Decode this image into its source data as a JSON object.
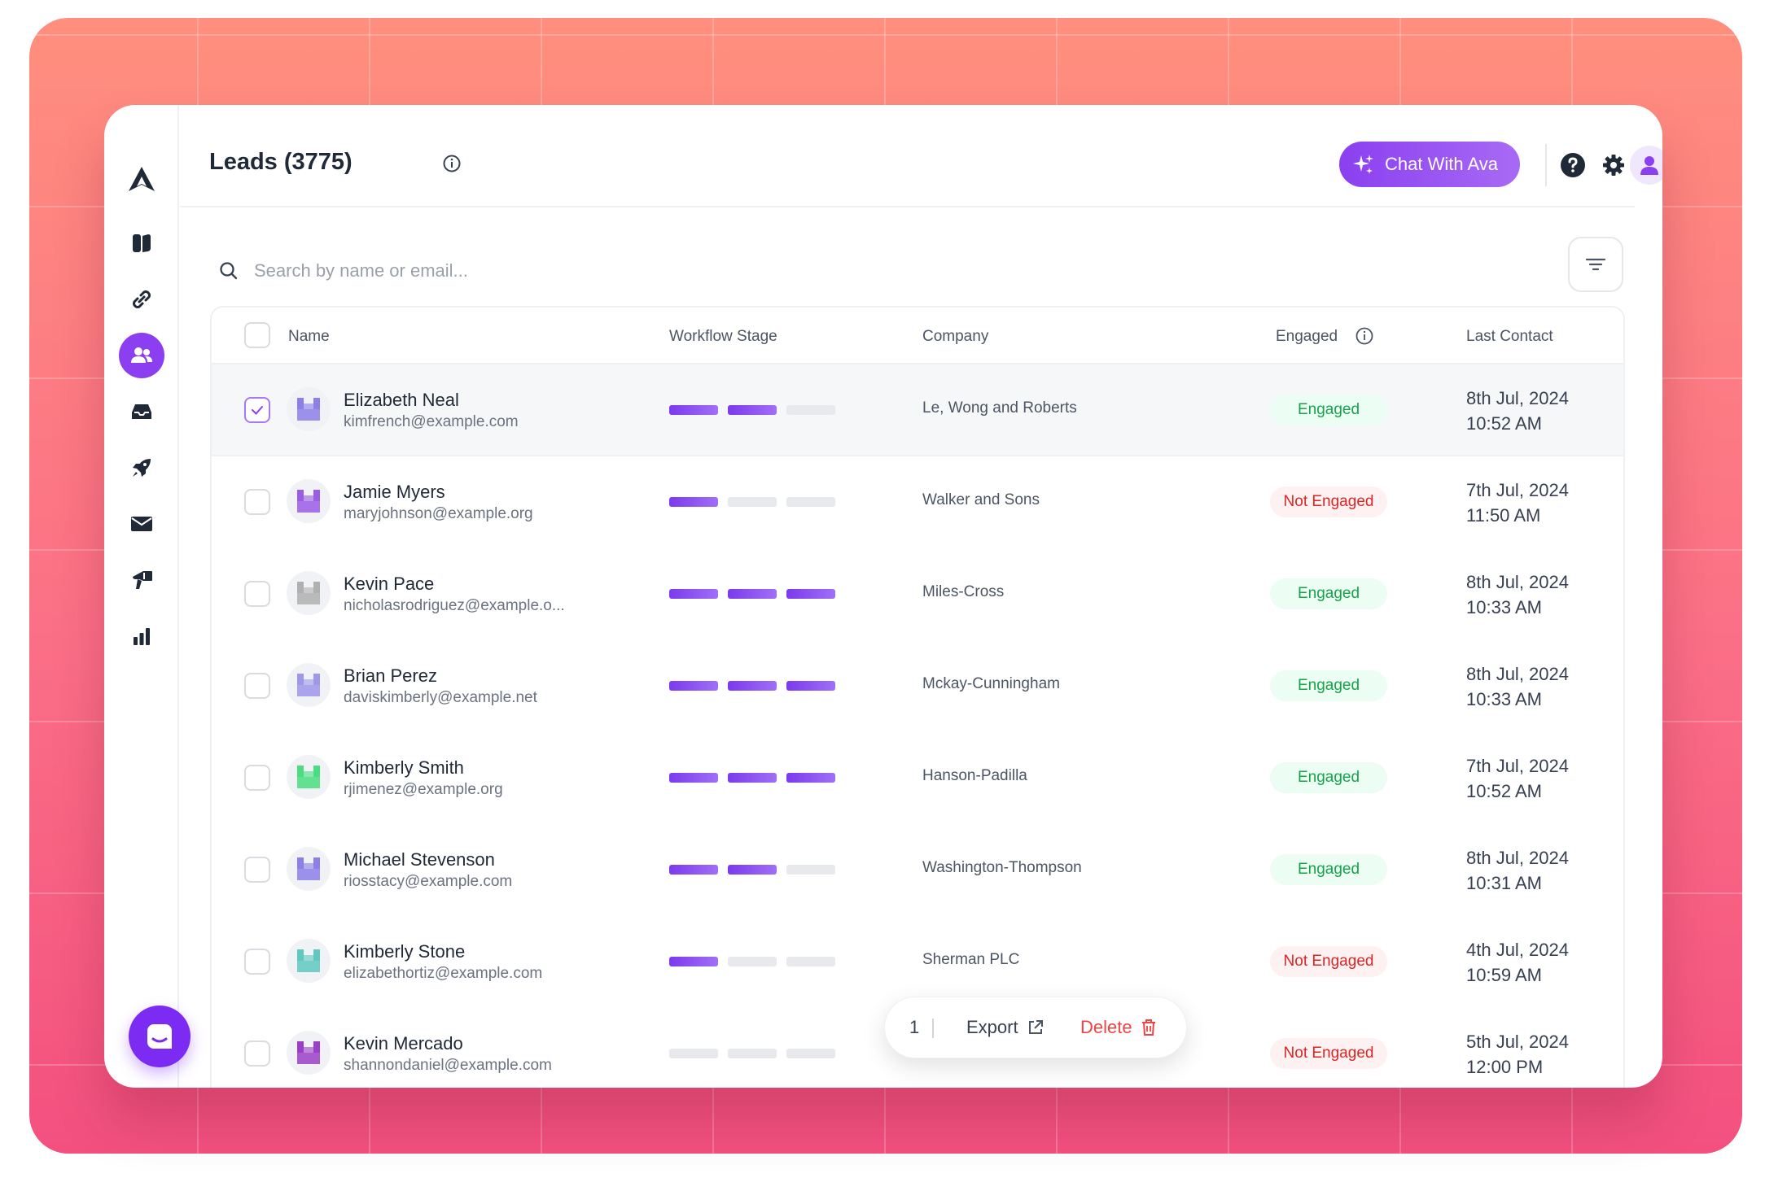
{
  "header": {
    "title": "Leads (3775)",
    "ava_label": "Chat With Ava"
  },
  "sidebar": {
    "items": [
      {
        "icon": "book-icon"
      },
      {
        "icon": "link-icon"
      },
      {
        "icon": "users-icon",
        "active": true
      },
      {
        "icon": "inbox-icon"
      },
      {
        "icon": "rocket-icon"
      },
      {
        "icon": "mail-icon"
      },
      {
        "icon": "megaphone-icon"
      },
      {
        "icon": "bar-chart-icon"
      }
    ]
  },
  "search": {
    "placeholder": "Search by name or email..."
  },
  "table": {
    "columns": {
      "name": "Name",
      "stage": "Workflow Stage",
      "company": "Company",
      "engaged": "Engaged",
      "last_contact": "Last Contact"
    },
    "rows": [
      {
        "name": "Elizabeth Neal",
        "email": "kimfrench@example.com",
        "stage": 2,
        "company": "Le, Wong and Roberts",
        "engaged": "Engaged",
        "date": "8th Jul, 2024",
        "time": "10:52 AM",
        "selected": true
      },
      {
        "name": "Jamie Myers",
        "email": "maryjohnson@example.org",
        "stage": 1,
        "company": "Walker and Sons",
        "engaged": "Not Engaged",
        "date": "7th Jul, 2024",
        "time": "11:50 AM"
      },
      {
        "name": "Kevin Pace",
        "email": "nicholasrodriguez@example.o...",
        "stage": 3,
        "company": "Miles-Cross",
        "engaged": "Engaged",
        "date": "8th Jul, 2024",
        "time": "10:33 AM"
      },
      {
        "name": "Brian Perez",
        "email": "daviskimberly@example.net",
        "stage": 3,
        "company": "Mckay-Cunningham",
        "engaged": "Engaged",
        "date": "8th Jul, 2024",
        "time": "10:33 AM"
      },
      {
        "name": "Kimberly Smith",
        "email": "rjimenez@example.org",
        "stage": 3,
        "company": "Hanson-Padilla",
        "engaged": "Engaged",
        "date": "7th Jul, 2024",
        "time": "10:52 AM"
      },
      {
        "name": "Michael Stevenson",
        "email": "riosstacy@example.com",
        "stage": 2,
        "company": "Washington-Thompson",
        "engaged": "Engaged",
        "date": "8th Jul, 2024",
        "time": "10:31 AM"
      },
      {
        "name": "Kimberly Stone",
        "email": "elizabethortiz@example.com",
        "stage": 1,
        "company": "Sherman PLC",
        "engaged": "Not Engaged",
        "date": "4th Jul, 2024",
        "time": "10:59 AM"
      },
      {
        "name": "Kevin Mercado",
        "email": "shannondaniel@example.com",
        "stage": 0,
        "company": "",
        "engaged": "Not Engaged",
        "date": "5th Jul, 2024",
        "time": "12:00 PM"
      }
    ]
  },
  "action_bar": {
    "count": "1",
    "export_label": "Export",
    "delete_label": "Delete"
  },
  "colors": {
    "accent": "#8b3ff0",
    "engaged": "#16a34a",
    "not_engaged": "#dc2626",
    "background_top": "#ff8f7e",
    "background_bottom": "#f3507f"
  }
}
